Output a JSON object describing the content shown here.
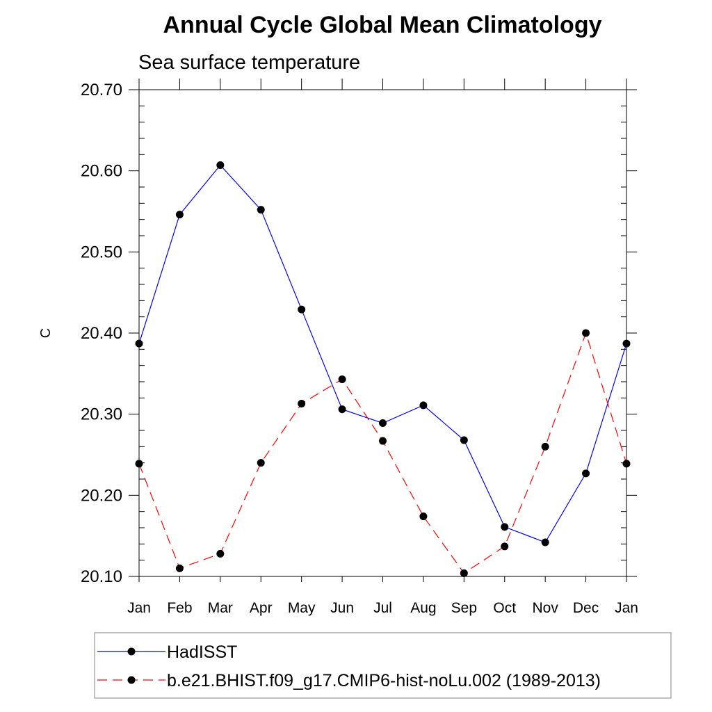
{
  "chart_data": {
    "type": "line",
    "title": "Annual Cycle Global Mean Climatology",
    "subtitle": "Sea surface temperature",
    "xlabel": "",
    "ylabel": "C",
    "categories": [
      "Jan",
      "Feb",
      "Mar",
      "Apr",
      "May",
      "Jun",
      "Jul",
      "Aug",
      "Sep",
      "Oct",
      "Nov",
      "Dec",
      "Jan"
    ],
    "ylim": [
      20.1,
      20.7
    ],
    "yticks": [
      "20.10",
      "20.20",
      "20.30",
      "20.40",
      "20.50",
      "20.60",
      "20.70"
    ],
    "grid": false,
    "legend_position": "bottom",
    "series": [
      {
        "name": "HadISST",
        "color": "#0000ff",
        "style": "solid",
        "marker": "filled-circle",
        "values": [
          20.387,
          20.546,
          20.607,
          20.552,
          20.429,
          20.306,
          20.289,
          20.311,
          20.268,
          20.161,
          20.142,
          20.227,
          20.387
        ]
      },
      {
        "name": "b.e21.BHIST.f09_g17.CMIP6-hist-noLu.002 (1989-2013)",
        "color": "#ff0000",
        "style": "dashed",
        "marker": "filled-circle",
        "values": [
          20.239,
          20.11,
          20.128,
          20.24,
          20.313,
          20.343,
          20.267,
          20.174,
          20.104,
          20.137,
          20.26,
          20.4,
          20.239
        ]
      }
    ]
  }
}
